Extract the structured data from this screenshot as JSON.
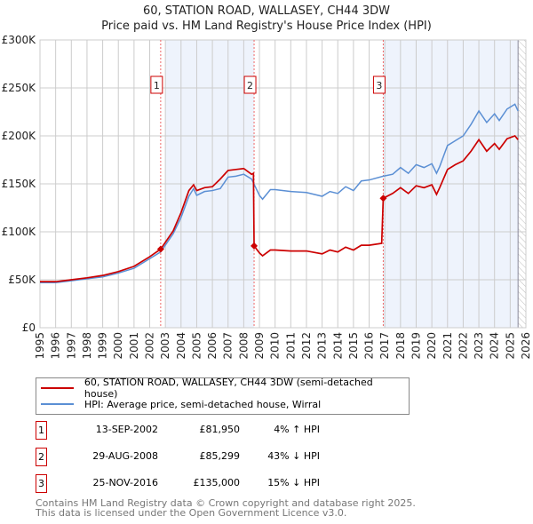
{
  "chart_data": {
    "type": "line",
    "title": "60, STATION ROAD, WALLASEY, CH44 3DW",
    "subtitle": "Price paid vs. HM Land Registry's House Price Index (HPI)",
    "xlim": [
      1995,
      2026
    ],
    "ylim": [
      0,
      300000
    ],
    "y_ticks": [
      {
        "v": 0,
        "label": "£0"
      },
      {
        "v": 50000,
        "label": "£50K"
      },
      {
        "v": 100000,
        "label": "£100K"
      },
      {
        "v": 150000,
        "label": "£150K"
      },
      {
        "v": 200000,
        "label": "£200K"
      },
      {
        "v": 250000,
        "label": "£250K"
      },
      {
        "v": 300000,
        "label": "£300K"
      }
    ],
    "x_ticks": [
      "1995",
      "1996",
      "1997",
      "1998",
      "1999",
      "2000",
      "2001",
      "2002",
      "2003",
      "2004",
      "2005",
      "2006",
      "2007",
      "2008",
      "2009",
      "2010",
      "2011",
      "2012",
      "2013",
      "2014",
      "2015",
      "2016",
      "2017",
      "2018",
      "2019",
      "2020",
      "2021",
      "2022",
      "2023",
      "2024",
      "2025",
      "2026"
    ],
    "shaded_periods": [
      [
        2003.0,
        2008.66
      ],
      [
        2016.9,
        2025.5
      ]
    ],
    "forecast_start": 2025.5,
    "series": [
      {
        "name": "60, STATION ROAD, WALLASEY, CH44 3DW (semi-detached house)",
        "color": "#cc0000",
        "x": [
          1995,
          1996,
          1997,
          1998,
          1999,
          2000,
          2001,
          2002,
          2002.7,
          2003.5,
          2004,
          2004.5,
          2004.8,
          2005,
          2005.5,
          2006,
          2006.5,
          2007,
          2007.5,
          2008,
          2008.5,
          2008.62,
          2008.66,
          2009,
          2009.2,
          2009.7,
          2010,
          2011,
          2012,
          2013,
          2013.5,
          2014,
          2014.5,
          2015,
          2015.5,
          2016,
          2016.8,
          2016.9,
          2017.5,
          2018,
          2018.5,
          2019,
          2019.5,
          2020,
          2020.3,
          2020.5,
          2021,
          2021.5,
          2022,
          2022.5,
          2023,
          2023.5,
          2024,
          2024.3,
          2024.8,
          2025.3,
          2025.5
        ],
        "y": [
          48000,
          48000,
          50000,
          52000,
          54500,
          58500,
          64000,
          74000,
          81950,
          101000,
          120000,
          143000,
          149000,
          143000,
          146000,
          147000,
          155000,
          164000,
          165000,
          166000,
          160000,
          161000,
          85299,
          78000,
          75000,
          81000,
          81000,
          80000,
          80000,
          77000,
          81000,
          79000,
          84000,
          81000,
          86000,
          86000,
          88000,
          135000,
          140000,
          146000,
          140000,
          148000,
          146000,
          149000,
          139000,
          146000,
          165000,
          170000,
          174000,
          184000,
          196000,
          184000,
          192000,
          186000,
          197000,
          200000,
          196000
        ]
      },
      {
        "name": "HPI: Average price, semi-detached house, Wirral",
        "color": "#5b8fd4",
        "x": [
          1995,
          1996,
          1997,
          1998,
          1999,
          2000,
          2001,
          2002,
          2002.7,
          2003.5,
          2004,
          2004.5,
          2004.8,
          2005,
          2005.5,
          2006,
          2006.5,
          2007,
          2007.5,
          2008,
          2008.5,
          2009,
          2009.2,
          2009.7,
          2010,
          2011,
          2012,
          2013,
          2013.5,
          2014,
          2014.5,
          2015,
          2015.5,
          2016,
          2016.9,
          2017.5,
          2018,
          2018.5,
          2019,
          2019.5,
          2020,
          2020.3,
          2020.5,
          2021,
          2021.5,
          2022,
          2022.5,
          2023,
          2023.5,
          2024,
          2024.3,
          2024.8,
          2025.3,
          2025.5
        ],
        "y": [
          47000,
          47000,
          49000,
          51000,
          53000,
          57000,
          62000,
          72000,
          79000,
          98000,
          115000,
          137000,
          145000,
          138000,
          142000,
          143000,
          145000,
          157000,
          158000,
          160000,
          155000,
          138000,
          134000,
          144000,
          144000,
          142000,
          141000,
          137000,
          142000,
          140000,
          147000,
          143000,
          153000,
          154000,
          158000,
          160000,
          167000,
          161000,
          170000,
          167000,
          171000,
          161000,
          168000,
          190000,
          195000,
          200000,
          212000,
          226000,
          214000,
          223000,
          216000,
          228000,
          233000,
          226000
        ]
      }
    ],
    "sales": [
      {
        "label": "1",
        "x": 2002.7,
        "value": 81950,
        "date": "13-SEP-2002",
        "price": "£81,950",
        "hpi": "4% ↑ HPI"
      },
      {
        "label": "2",
        "x": 2008.66,
        "value": 85299,
        "date": "29-AUG-2008",
        "price": "£85,299",
        "hpi": "43% ↓ HPI"
      },
      {
        "label": "3",
        "x": 2016.9,
        "value": 135000,
        "date": "25-NOV-2016",
        "price": "£135,000",
        "hpi": "15% ↓ HPI"
      }
    ]
  },
  "footer": {
    "line1": "Contains HM Land Registry data © Crown copyright and database right 2025.",
    "line2": "This data is licensed under the Open Government Licence v3.0."
  }
}
